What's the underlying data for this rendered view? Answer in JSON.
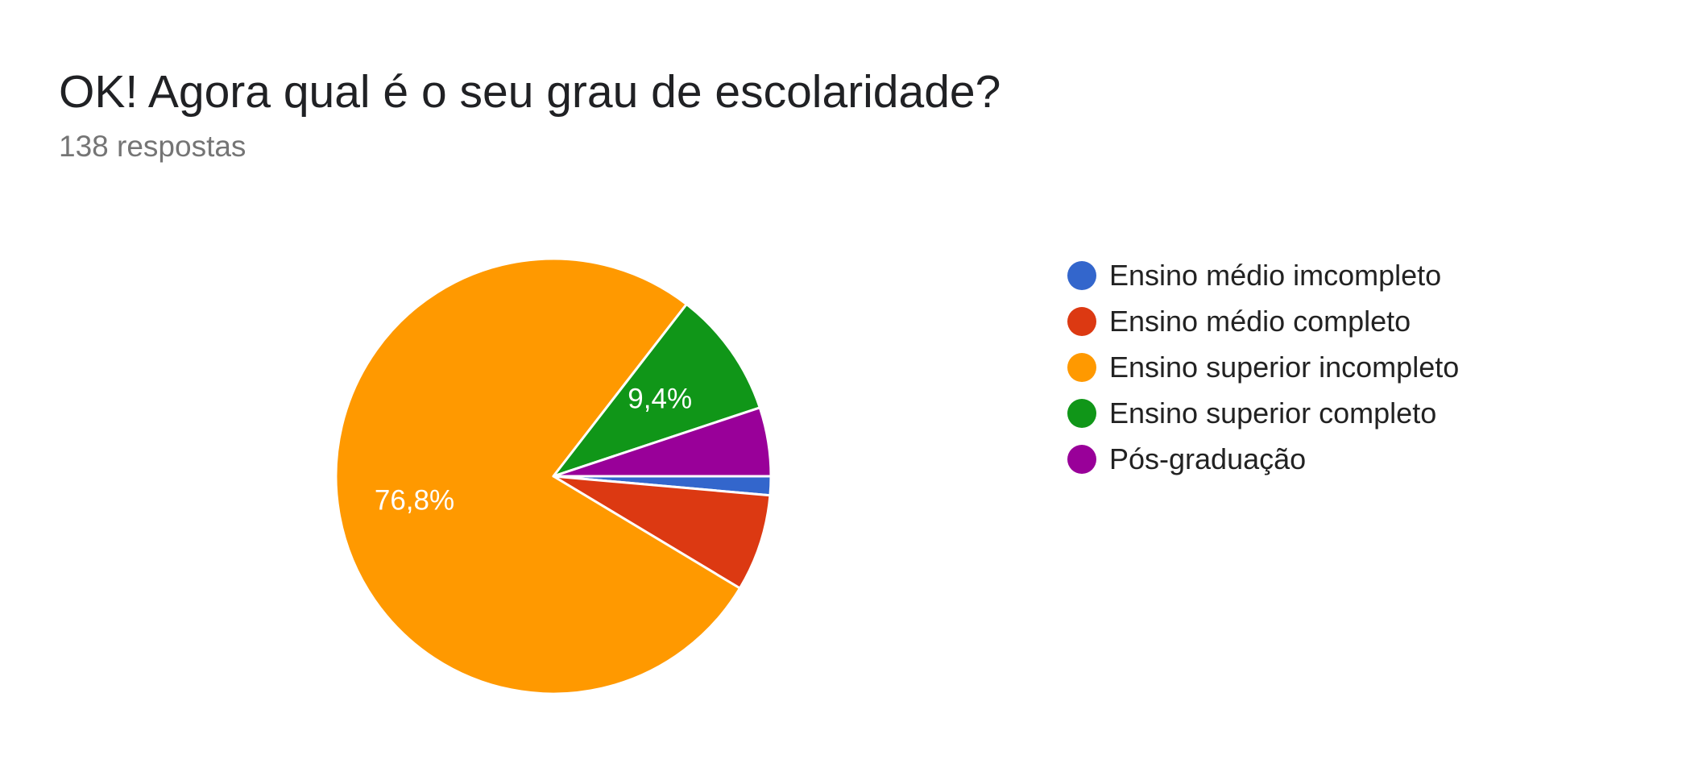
{
  "header": {
    "title": "OK! Agora qual é o seu grau de escolaridade?",
    "subtitle": "138 respostas"
  },
  "chart_data": {
    "type": "pie",
    "categories": [
      "Ensino médio imcompleto",
      "Ensino médio completo",
      "Ensino superior incompleto",
      "Ensino superior completo",
      "Pós-graduação"
    ],
    "values": [
      1.4,
      7.2,
      76.8,
      9.4,
      5.1
    ],
    "value_unit": "%",
    "colors": [
      "#3366cc",
      "#dc3912",
      "#ff9900",
      "#109618",
      "#990099"
    ],
    "data_labels": [
      "",
      "",
      "76,8%",
      "9,4%",
      ""
    ],
    "legend_position": "right",
    "start_angle": "right (3 o'clock), clockwise"
  },
  "legend": {
    "items": [
      {
        "label": "Ensino médio imcompleto",
        "color": "#3366cc"
      },
      {
        "label": "Ensino médio completo",
        "color": "#dc3912"
      },
      {
        "label": "Ensino superior incompleto",
        "color": "#ff9900"
      },
      {
        "label": "Ensino superior completo",
        "color": "#109618"
      },
      {
        "label": "Pós-graduação",
        "color": "#990099"
      }
    ]
  }
}
